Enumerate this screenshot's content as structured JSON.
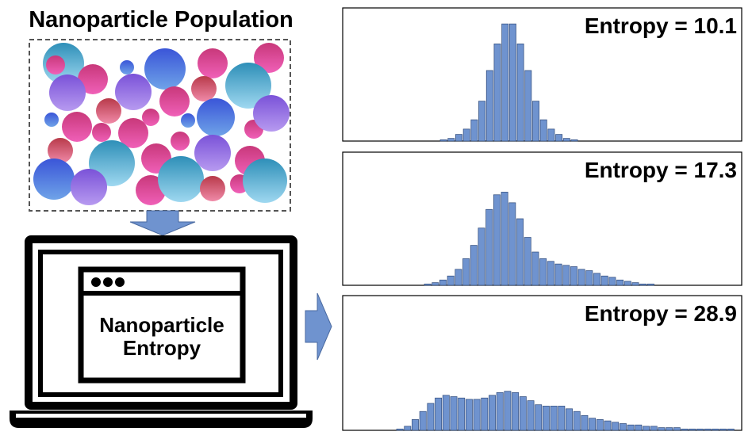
{
  "title": "Nanoparticle Population",
  "laptop_label": [
    "Nanoparticle",
    "Entropy"
  ],
  "chart_data": [
    {
      "type": "bar",
      "title": "Entropy = 10.1",
      "color": "#6f93cf",
      "categories": [
        null,
        null,
        null,
        null,
        null,
        null,
        null,
        null,
        null,
        null,
        null,
        null,
        null,
        null,
        null,
        null,
        null,
        null
      ],
      "values": [
        1,
        2,
        5,
        9,
        16,
        30,
        53,
        73,
        88,
        88,
        73,
        53,
        30,
        16,
        9,
        5,
        2,
        1
      ]
    },
    {
      "type": "bar",
      "title": "Entropy = 17.3",
      "color": "#6f93cf",
      "categories": [
        null,
        null,
        null,
        null,
        null,
        null,
        null,
        null,
        null,
        null,
        null,
        null,
        null,
        null,
        null,
        null,
        null,
        null,
        null,
        null,
        null,
        null,
        null,
        null,
        null,
        null,
        null,
        null,
        null,
        null
      ],
      "values": [
        1,
        2,
        4,
        7,
        12,
        20,
        30,
        43,
        57,
        68,
        70,
        62,
        50,
        36,
        25,
        20,
        18,
        16,
        15,
        14,
        12,
        11,
        9,
        7,
        6,
        4,
        3,
        2,
        1,
        1
      ]
    },
    {
      "type": "bar",
      "title": "Entropy = 28.9",
      "color": "#6f93cf",
      "categories": [
        null,
        null,
        null,
        null,
        null,
        null,
        null,
        null,
        null,
        null,
        null,
        null,
        null,
        null,
        null,
        null,
        null,
        null,
        null,
        null,
        null,
        null,
        null,
        null,
        null,
        null,
        null,
        null,
        null,
        null,
        null,
        null,
        null,
        null,
        null,
        null,
        null,
        null,
        null,
        null,
        null,
        null,
        null,
        null
      ],
      "values": [
        1,
        3,
        8,
        14,
        20,
        24,
        26,
        25,
        24,
        23,
        23,
        24,
        26,
        28,
        29,
        28,
        25,
        22,
        19,
        18,
        18,
        18,
        16,
        14,
        11,
        9,
        8,
        7,
        6,
        5,
        4,
        4,
        3,
        3,
        2,
        2,
        2,
        1,
        1,
        1,
        1,
        1,
        1,
        1
      ]
    }
  ]
}
